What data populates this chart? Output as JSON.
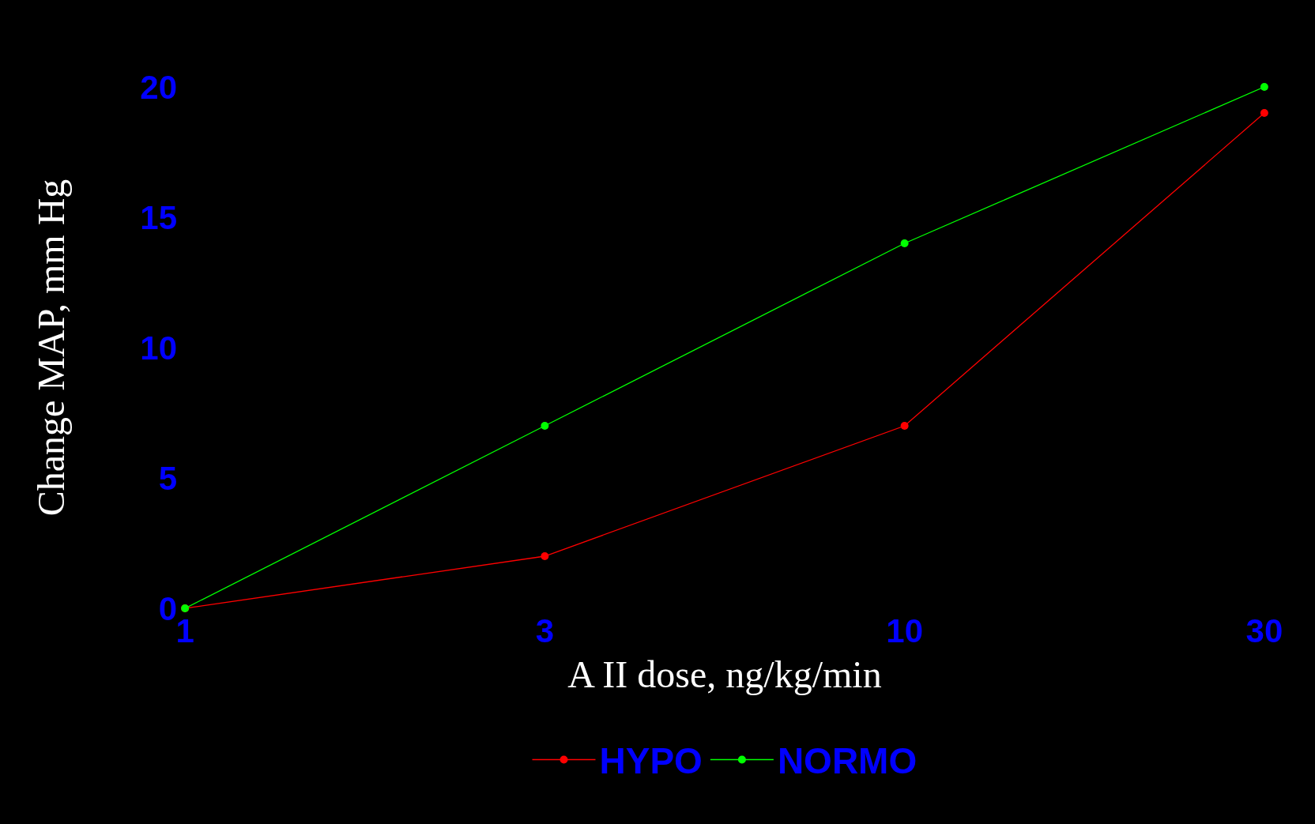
{
  "chart_data": {
    "type": "line",
    "xlabel": "A II dose, ng/kg/min",
    "ylabel": "Change MAP, mm Hg",
    "categories": [
      "1",
      "3",
      "10",
      "30"
    ],
    "series": [
      {
        "name": "HYPO",
        "color": "#ff0000",
        "values": [
          0,
          2,
          7,
          19
        ]
      },
      {
        "name": "NORMO",
        "color": "#00ff00",
        "values": [
          0,
          7,
          14,
          20
        ]
      }
    ],
    "ylim": [
      0,
      20
    ],
    "yticks": [
      0,
      5,
      10,
      15,
      20
    ],
    "grid": false,
    "legend": "bottom",
    "marker": "circle",
    "line_style": "solid"
  }
}
